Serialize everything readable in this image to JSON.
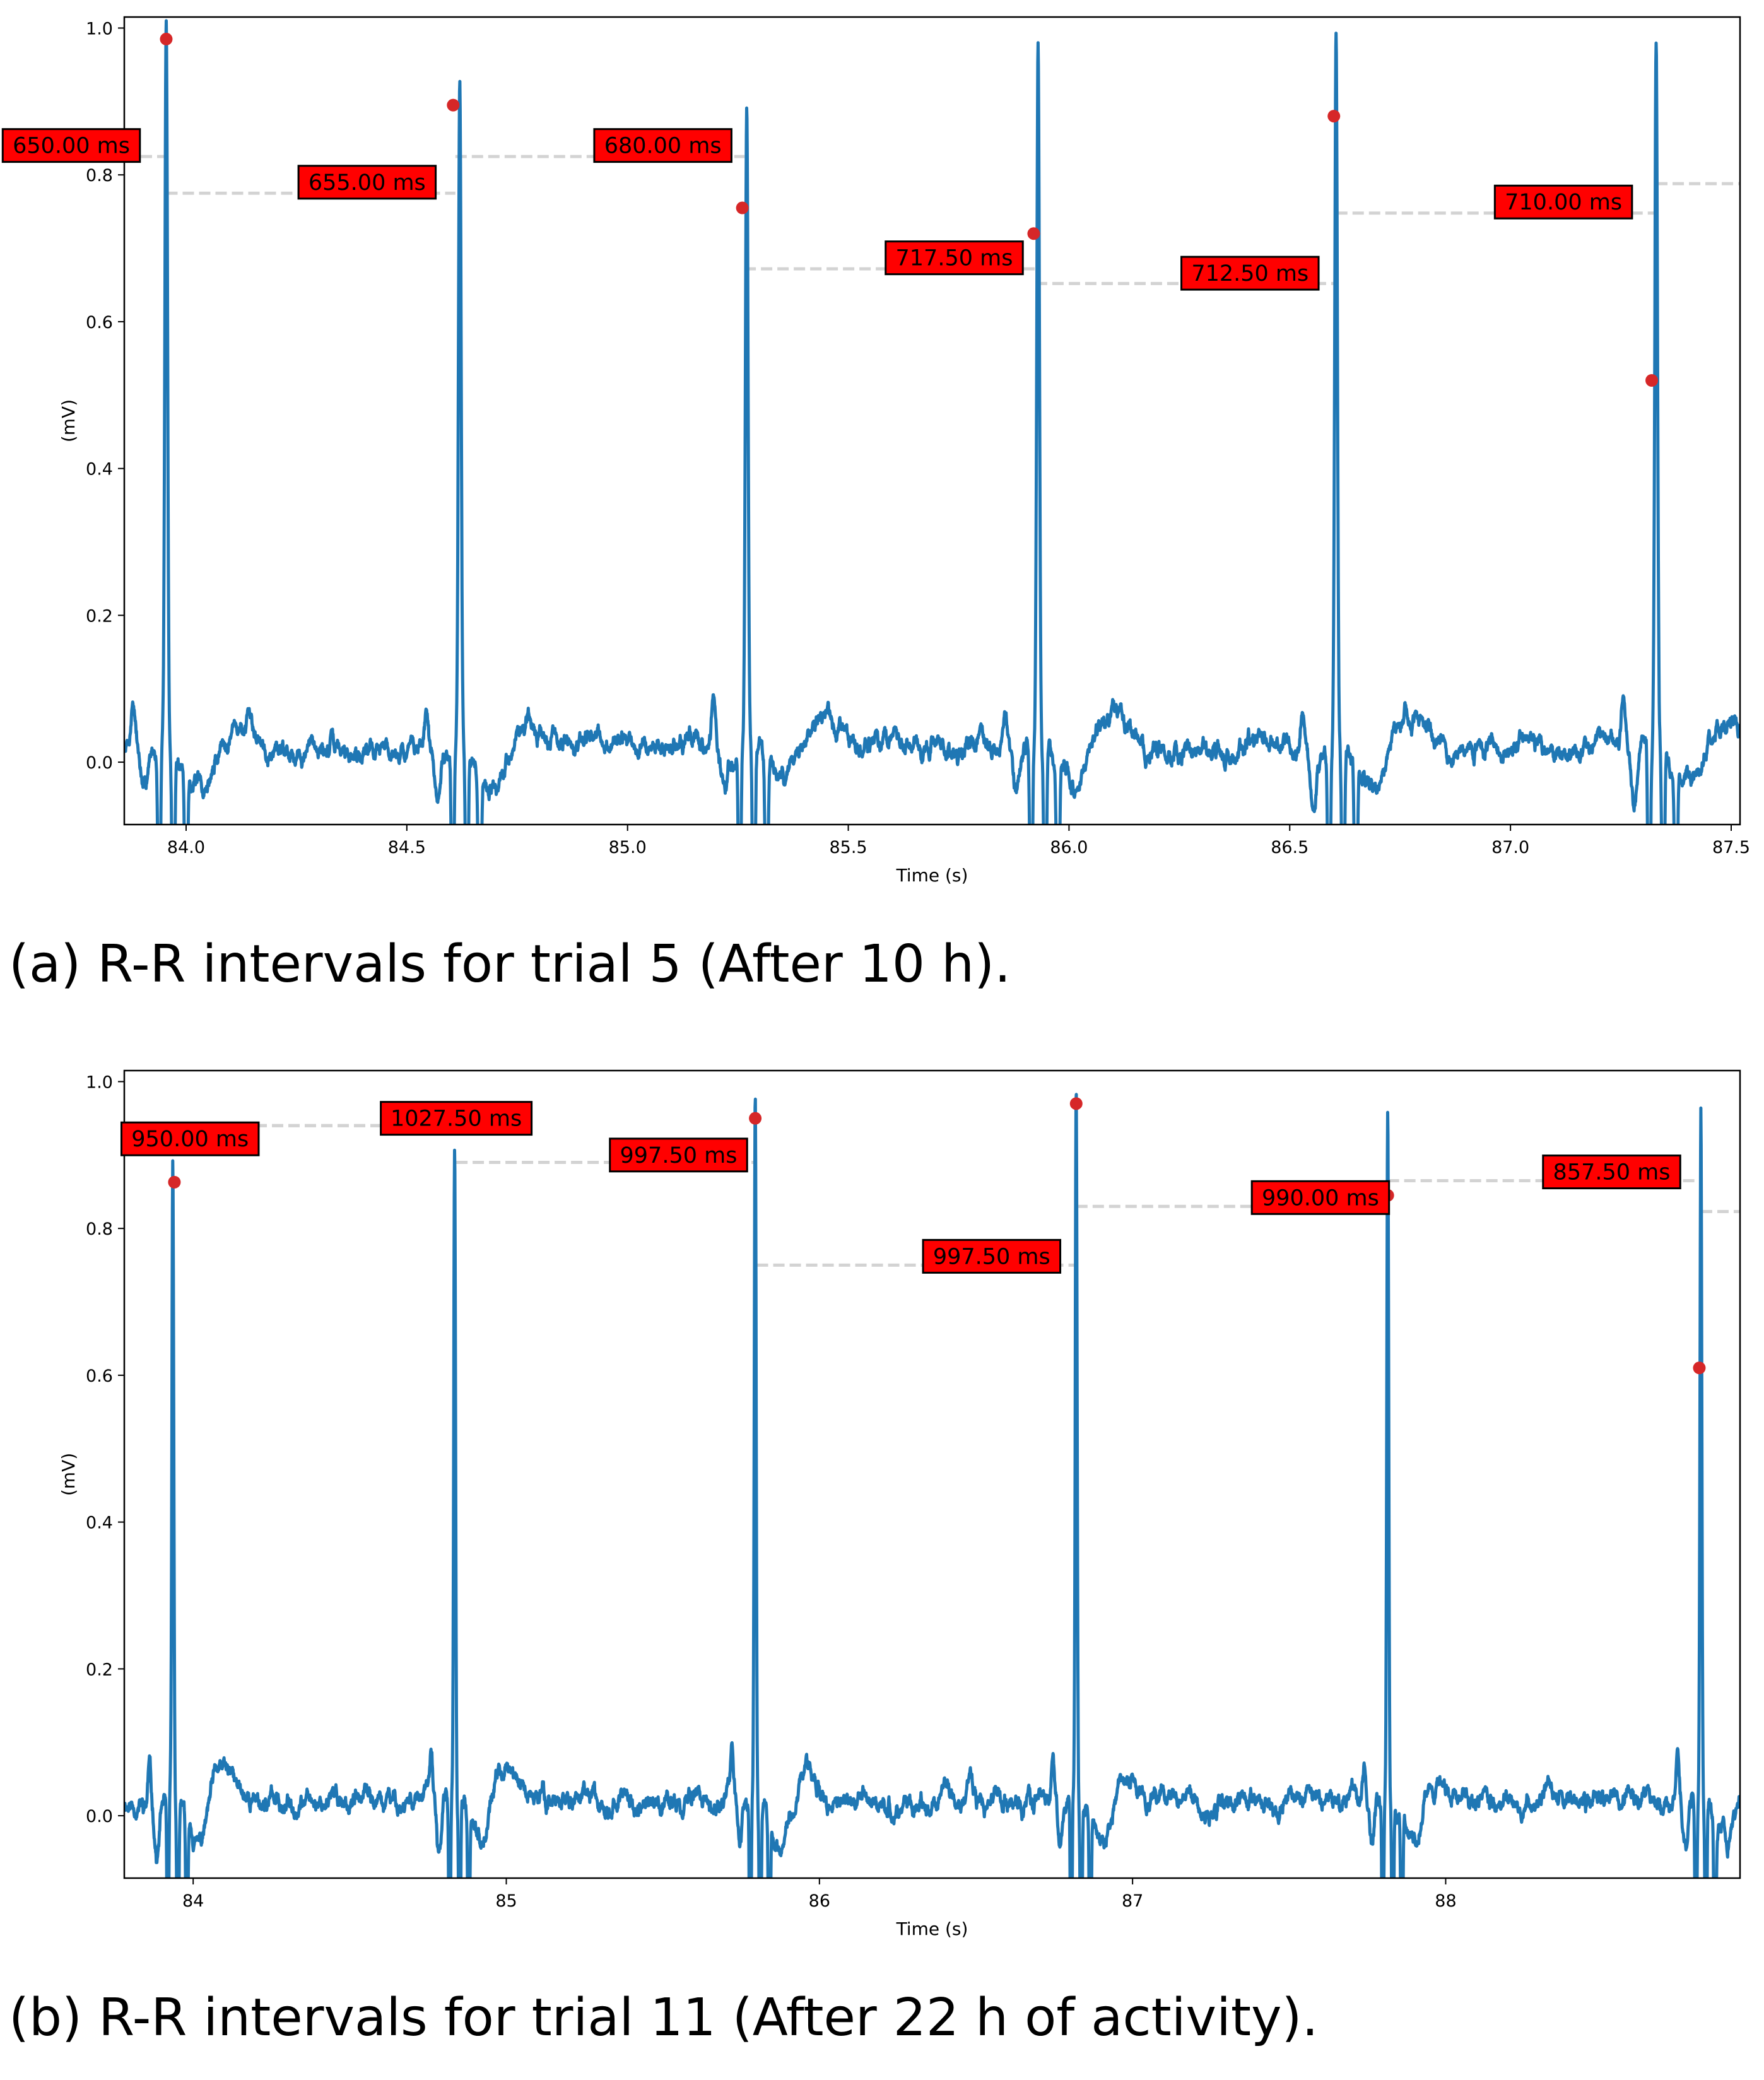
{
  "chart_data": [
    {
      "type": "line",
      "caption": "(a) R-R intervals for trial 5 (After 10 h).",
      "xlabel": "Time (s)",
      "ylabel": "(mV)",
      "xlim": [
        83.86,
        87.52
      ],
      "ylim": [
        -0.085,
        1.015
      ],
      "xticks": [
        84.0,
        84.5,
        85.0,
        85.5,
        86.0,
        86.5,
        87.0,
        87.5
      ],
      "xtick_labels": [
        "84.0",
        "84.5",
        "85.0",
        "85.5",
        "86.0",
        "86.5",
        "87.0",
        "87.5"
      ],
      "yticks": [
        0.0,
        0.2,
        0.4,
        0.6,
        0.8,
        1.0
      ],
      "ytick_labels": [
        "0.0",
        "0.2",
        "0.4",
        "0.6",
        "0.8",
        "1.0"
      ],
      "line_color": "#1f77b4",
      "marker_color": "#d62728",
      "box_color": "#ff0000",
      "beats": [
        {
          "t": 83.955,
          "h": 0.99
        },
        {
          "t": 84.62,
          "h": 0.92
        },
        {
          "t": 85.27,
          "h": 0.88
        },
        {
          "t": 85.93,
          "h": 0.95
        },
        {
          "t": 86.605,
          "h": 0.975
        },
        {
          "t": 87.33,
          "h": 0.965
        }
      ],
      "r_peaks": [
        {
          "t": 83.955,
          "v": 0.985
        },
        {
          "t": 84.605,
          "v": 0.895
        },
        {
          "t": 85.26,
          "v": 0.755
        },
        {
          "t": 85.92,
          "v": 0.72
        },
        {
          "t": 86.6,
          "v": 0.88
        },
        {
          "t": 87.32,
          "v": 0.52
        }
      ],
      "intervals": [
        {
          "label": "650.00 ms",
          "x0": 83.86,
          "x1": 83.955,
          "y": 0.825,
          "bx": 83.74,
          "by": 0.84
        },
        {
          "label": "655.00 ms",
          "x0": 83.955,
          "x1": 84.61,
          "y": 0.775,
          "bx": 84.41,
          "by": 0.79
        },
        {
          "label": "680.00 ms",
          "x0": 84.61,
          "x1": 85.265,
          "y": 0.825,
          "bx": 85.08,
          "by": 0.84
        },
        {
          "label": "717.50 ms",
          "x0": 85.265,
          "x1": 85.925,
          "y": 0.672,
          "bx": 85.74,
          "by": 0.687
        },
        {
          "label": "712.50 ms",
          "x0": 85.925,
          "x1": 86.605,
          "y": 0.652,
          "bx": 86.41,
          "by": 0.666
        },
        {
          "label": "710.00 ms",
          "x0": 86.605,
          "x1": 87.33,
          "y": 0.748,
          "bx": 87.12,
          "by": 0.763
        },
        {
          "label": "",
          "x0": 87.33,
          "x1": 87.52,
          "y": 0.788,
          "bx": 0,
          "by": 0
        }
      ]
    },
    {
      "type": "line",
      "caption": "(b) R-R intervals for trial 11 (After 22 h of activity).",
      "xlabel": "Time (s)",
      "ylabel": "(mV)",
      "xlim": [
        83.78,
        88.94
      ],
      "ylim": [
        -0.085,
        1.015
      ],
      "xticks": [
        84,
        85,
        86,
        87,
        88
      ],
      "xtick_labels": [
        "84",
        "85",
        "86",
        "87",
        "88"
      ],
      "yticks": [
        0.0,
        0.2,
        0.4,
        0.6,
        0.8,
        1.0
      ],
      "ytick_labels": [
        "0.0",
        "0.2",
        "0.4",
        "0.6",
        "0.8",
        "1.0"
      ],
      "line_color": "#1f77b4",
      "marker_color": "#d62728",
      "box_color": "#ff0000",
      "beats": [
        {
          "t": 83.935,
          "h": 0.865
        },
        {
          "t": 84.835,
          "h": 0.9
        },
        {
          "t": 85.795,
          "h": 0.965
        },
        {
          "t": 86.82,
          "h": 0.97
        },
        {
          "t": 87.815,
          "h": 0.935
        },
        {
          "t": 88.815,
          "h": 0.945
        }
      ],
      "r_peaks": [
        {
          "t": 83.94,
          "v": 0.863
        },
        {
          "t": 85.795,
          "v": 0.95
        },
        {
          "t": 86.82,
          "v": 0.97
        },
        {
          "t": 87.815,
          "v": 0.845
        },
        {
          "t": 88.81,
          "v": 0.61
        }
      ],
      "intervals": [
        {
          "label": "950.00 ms",
          "x0": 83.78,
          "x1": 84.84,
          "y": 0.94,
          "bx": 83.99,
          "by": 0.922
        },
        {
          "label": "1027.50 ms",
          "x0": 83.78,
          "x1": 84.84,
          "y": 0.94,
          "bx": 84.84,
          "by": 0.95
        },
        {
          "label": "997.50 ms",
          "x0": 84.84,
          "x1": 85.8,
          "y": 0.89,
          "bx": 85.55,
          "by": 0.9
        },
        {
          "label": "997.50 ms",
          "x0": 85.8,
          "x1": 86.82,
          "y": 0.75,
          "bx": 86.55,
          "by": 0.762
        },
        {
          "label": "990.00 ms",
          "x0": 86.82,
          "x1": 87.815,
          "y": 0.83,
          "bx": 87.6,
          "by": 0.842
        },
        {
          "label": "857.50 ms",
          "x0": 87.815,
          "x1": 88.815,
          "y": 0.865,
          "bx": 88.53,
          "by": 0.877
        },
        {
          "label": "",
          "x0": 88.815,
          "x1": 88.94,
          "y": 0.823,
          "bx": 0,
          "by": 0
        }
      ]
    }
  ]
}
